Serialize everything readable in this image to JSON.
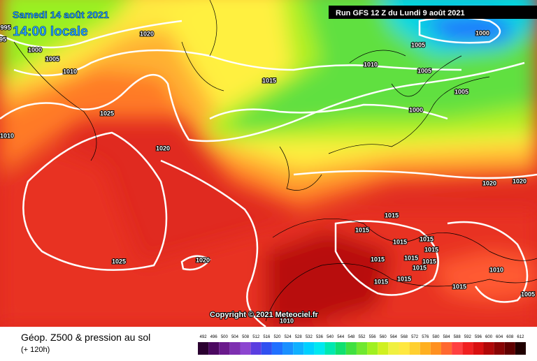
{
  "header": {
    "date": "Samedi 14 août 2021",
    "time": "14:00 locale",
    "run": "Run GFS 12 Z du Lundi 9 août 2021"
  },
  "isobars": [
    "995",
    "95",
    "1020",
    "1000",
    "1005",
    "1010",
    "1010",
    "1015",
    "1000",
    "1005",
    "1005",
    "1005",
    "1000",
    "1025",
    "1010",
    "1020",
    "1020",
    "1020",
    "1015",
    "1015",
    "1015",
    "1015",
    "1015",
    "1015",
    "1015",
    "1015",
    "1015",
    "1020",
    "1025",
    "1010",
    "1015",
    "1015",
    "1015",
    "1005",
    "1010"
  ],
  "copyright": "Copyright © 2021 Meteociel.fr",
  "footer": {
    "title": "Géop. Z500 & pression au sol",
    "lead": "(+ 120h)"
  },
  "colorbar": {
    "values": [
      492,
      496,
      500,
      504,
      508,
      512,
      516,
      520,
      524,
      528,
      532,
      536,
      540,
      544,
      548,
      552,
      556,
      560,
      564,
      568,
      572,
      576,
      580,
      584,
      588,
      592,
      596,
      600,
      604,
      608,
      612
    ],
    "colors": [
      "#2a0030",
      "#4b0860",
      "#6a1a8c",
      "#7d2fb0",
      "#8c45d0",
      "#5a3ee0",
      "#3050f0",
      "#2070ff",
      "#1a90ff",
      "#10b0ff",
      "#00d0ff",
      "#00e8f0",
      "#00e8b0",
      "#10e070",
      "#40e040",
      "#70e830",
      "#a0f020",
      "#d0f020",
      "#f0f040",
      "#ffe840",
      "#ffd030",
      "#ffb020",
      "#ff9020",
      "#ff6830",
      "#ff4040",
      "#f02020",
      "#d81010",
      "#b00808",
      "#880404",
      "#600000",
      "#200000"
    ]
  }
}
